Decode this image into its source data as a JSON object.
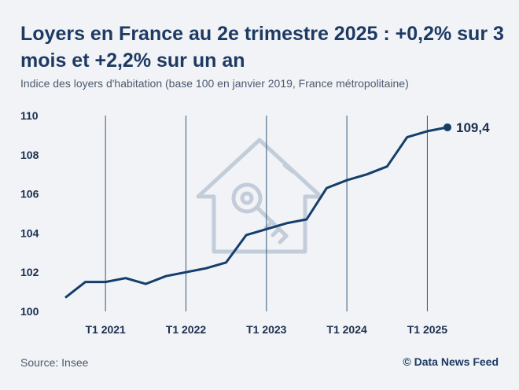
{
  "title": "Loyers en France au 2e trimestre 2025 : +0,2% sur 3 mois et +2,2% sur un an",
  "subtitle": "Indice des loyers d'habitation (base 100 en janvier 2019, France métropolitaine)",
  "source": "Source: Insee",
  "credit": "© Data News Feed",
  "watermark_icon": "house-key-icon",
  "colors": {
    "line": "#143e6b",
    "grid": "#34577d",
    "watermark": "#c3cdda",
    "background": "#f1f3f6"
  },
  "chart_data": {
    "type": "line",
    "title": "Loyers en France au 2e trimestre 2025 : +0,2% sur 3 mois et +2,2% sur un an",
    "ylim": [
      100,
      110
    ],
    "yticks": [
      100,
      102,
      104,
      106,
      108,
      110
    ],
    "ytick_labels": [
      "100",
      "102",
      "104",
      "106",
      "108",
      "110"
    ],
    "xticks": [
      "T1 2021",
      "T1 2022",
      "T1 2023",
      "T1 2024",
      "T1 2025"
    ],
    "grid": "vertical",
    "end_label": "109,4",
    "series": [
      {
        "x": [
          "T3 2020",
          "T4 2020",
          "T1 2021",
          "T2 2021",
          "T3 2021",
          "T4 2021",
          "T1 2022",
          "T2 2022",
          "T3 2022",
          "T4 2022",
          "T1 2023",
          "T2 2023",
          "T3 2023",
          "T4 2023",
          "T1 2024",
          "T2 2024",
          "T3 2024",
          "T4 2024",
          "T1 2025",
          "T2 2025"
        ],
        "values": [
          100.7,
          101.5,
          101.5,
          101.7,
          101.4,
          101.8,
          102.0,
          102.2,
          102.5,
          103.9,
          104.2,
          104.5,
          104.7,
          106.3,
          106.7,
          107.0,
          107.4,
          108.9,
          109.2,
          109.4
        ]
      }
    ]
  }
}
